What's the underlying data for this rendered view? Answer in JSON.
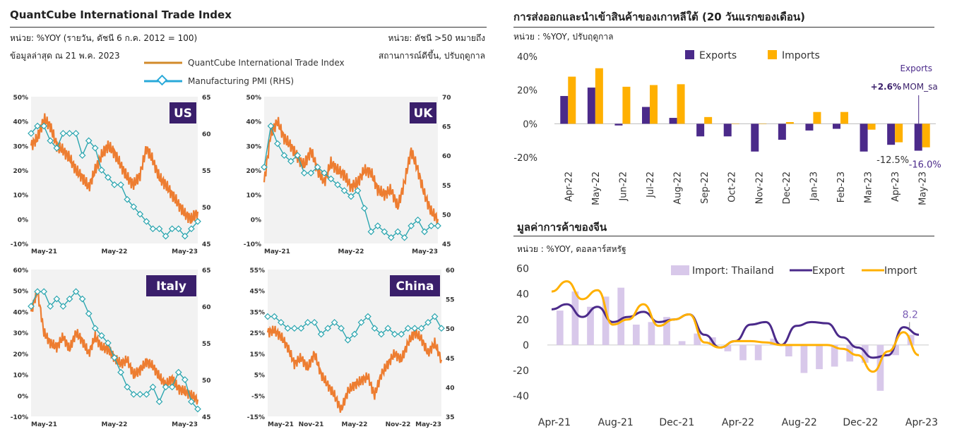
{
  "left": {
    "title": "QuantCube International Trade Index",
    "unit_note": "หน่วย: %YOY (รายวัน, ดัชนี 6 ก.ค. 2012 = 100)",
    "data_date": "ข้อมูลล่าสุด ณ 21 พ.ค. 2023",
    "right_note_1": "หน่วย: ดัชนี >50 หมายถึง",
    "right_note_2": "สถานการณ์ดีขึ้น, ปรับฤดูกาล",
    "legend": [
      "QuantCube International Trade Index",
      "Manufacturing PMI (RHS)"
    ],
    "colors": {
      "index": "#ED7D31",
      "pmi": "#2CA6B0",
      "label_bg": "#3A1F6B"
    }
  },
  "chart_data": [
    {
      "type": "line",
      "name": "US",
      "x_ticks": [
        "May-21",
        "May-22",
        "May-23"
      ],
      "y_left_ticks": [
        "50%",
        "40%",
        "30%",
        "20%",
        "10%",
        "0%",
        "-10%"
      ],
      "ylim_left": [
        -10,
        50
      ],
      "y_right_ticks": [
        "65",
        "60",
        "55",
        "50",
        "45"
      ],
      "ylim_right": [
        45,
        65
      ],
      "index": [
        30,
        33,
        41,
        38,
        30,
        28,
        25,
        20,
        17,
        13,
        20,
        26,
        30,
        27,
        22,
        17,
        14,
        18,
        29,
        24,
        17,
        14,
        10,
        6,
        2,
        0,
        3
      ],
      "pmi": [
        60,
        61,
        61,
        59,
        58,
        60,
        60,
        60,
        57,
        59,
        58,
        55,
        54,
        53,
        53,
        51,
        50,
        49,
        48,
        47,
        47,
        46,
        47,
        47,
        46,
        47,
        48
      ]
    },
    {
      "type": "line",
      "name": "UK",
      "x_ticks": [
        "May-21",
        "May-22",
        "May-23"
      ],
      "y_left_ticks": [
        "50%",
        "40%",
        "30%",
        "20%",
        "10%",
        "0%",
        "-10%"
      ],
      "ylim_left": [
        -10,
        50
      ],
      "y_right_ticks": [
        "70",
        "65",
        "60",
        "55",
        "50",
        "45"
      ],
      "ylim_right": [
        45,
        70
      ],
      "index": [
        15,
        35,
        40,
        33,
        30,
        25,
        22,
        28,
        20,
        15,
        23,
        20,
        18,
        13,
        15,
        20,
        19,
        12,
        10,
        12,
        5,
        15,
        28,
        20,
        10,
        3,
        0
      ],
      "pmi": [
        58,
        65,
        62,
        60,
        59,
        60,
        57,
        57,
        58,
        57,
        56,
        55,
        54,
        53,
        54,
        51,
        47,
        48,
        47,
        46,
        47,
        46,
        48,
        49,
        47,
        48,
        48
      ]
    },
    {
      "type": "line",
      "name": "Italy",
      "x_ticks": [
        "May-21",
        "May-22",
        "May-23"
      ],
      "y_left_ticks": [
        "60%",
        "50%",
        "40%",
        "30%",
        "20%",
        "10%",
        "0%",
        "-10%"
      ],
      "ylim_left": [
        -10,
        60
      ],
      "y_right_ticks": [
        "65",
        "60",
        "55",
        "50",
        "45"
      ],
      "ylim_right": [
        45,
        65
      ],
      "index": [
        40,
        50,
        30,
        25,
        23,
        28,
        22,
        30,
        26,
        20,
        28,
        23,
        22,
        18,
        15,
        17,
        10,
        12,
        16,
        14,
        9,
        5,
        8,
        3,
        2,
        0,
        -2
      ],
      "pmi": [
        60,
        62,
        62,
        60,
        61,
        60,
        61,
        62,
        61,
        59,
        57,
        56,
        55,
        53,
        51,
        49,
        48,
        48,
        48,
        49,
        47,
        49,
        49,
        51,
        50,
        47,
        46
      ]
    },
    {
      "type": "line",
      "name": "China",
      "x_ticks": [
        "May-21",
        "Nov-21",
        "May-22",
        "Nov-22",
        "May-23"
      ],
      "y_left_ticks": [
        "55%",
        "45%",
        "35%",
        "25%",
        "15%",
        "5%",
        "-5%",
        "-15%"
      ],
      "ylim_left": [
        -15,
        55
      ],
      "y_right_ticks": [
        "60",
        "55",
        "50",
        "45",
        "40",
        "35"
      ],
      "ylim_right": [
        35,
        60
      ],
      "index": [
        25,
        26,
        23,
        18,
        10,
        13,
        8,
        15,
        5,
        0,
        -5,
        -12,
        -3,
        0,
        2,
        4,
        -5,
        5,
        10,
        15,
        12,
        20,
        25,
        22,
        15,
        20,
        12
      ],
      "pmi": [
        52,
        52,
        51,
        50,
        50,
        50,
        51,
        51,
        49,
        50,
        51,
        50,
        48,
        49,
        51,
        52,
        50,
        49,
        50,
        49,
        49,
        50,
        50,
        50,
        51,
        52,
        50
      ]
    },
    {
      "type": "bar",
      "title": "การส่งออกและนำเข้าสินค้าของเกาหลีใต้ (20 วันแรกของเดือน)",
      "unit_note": "หน่วย : %YOY, ปรับฤดูกาล",
      "categories": [
        "Apr-22",
        "May-22",
        "Jun-22",
        "Jul-22",
        "Aug-22",
        "Sep-22",
        "Oct-22",
        "Nov-22",
        "Dec-22",
        "Jan-23",
        "Feb-23",
        "Mar-23",
        "Apr-23",
        "May-23"
      ],
      "series": [
        {
          "name": "Exports",
          "values": [
            16.5,
            21.5,
            -1.0,
            10.0,
            3.5,
            -7.5,
            -7.5,
            -16.5,
            -9.5,
            -4.0,
            -3.0,
            -16.5,
            -12.5,
            -16.0
          ]
        },
        {
          "name": "Imports",
          "values": [
            28.0,
            33.0,
            22.0,
            23.0,
            23.5,
            4.0,
            0.0,
            0.0,
            1.0,
            7.0,
            7.0,
            -3.5,
            -11.0,
            -14.0
          ]
        }
      ],
      "y_ticks": [
        "40%",
        "20%",
        "0%",
        "-20%"
      ],
      "ylim": [
        -25,
        40
      ],
      "annotations": {
        "exports_label": "Exports",
        "mom_prefix": "+2.6%",
        "mom_suffix": "MOM_sa",
        "apr_label": "-12.5%",
        "may_label": "-16.0%"
      },
      "colors": {
        "Exports": "#4B2A8A",
        "Imports": "#FFB000"
      }
    },
    {
      "type": "bar",
      "title": "มูลค่าการค้าของจีน",
      "unit_note": "หน่วย : %YOY, ดอลลาร์สหรัฐ",
      "x_ticks": [
        "Apr-21",
        "Aug-21",
        "Dec-21",
        "Apr-22",
        "Aug-22",
        "Dec-22",
        "Apr-23"
      ],
      "y_ticks": [
        "60",
        "40",
        "20",
        "0",
        "-20",
        "-40"
      ],
      "ylim": [
        -45,
        62
      ],
      "series": [
        {
          "name": "Import: Thailand",
          "values": [
            27,
            42,
            30,
            38,
            45,
            16,
            18,
            22,
            3,
            9,
            6,
            -5,
            -12,
            -12,
            5,
            -9,
            -22,
            -19,
            -17,
            -13,
            -14,
            -36,
            -8,
            8
          ]
        },
        {
          "name": "Export",
          "values": [
            28,
            32,
            22,
            30,
            18,
            22,
            26,
            18,
            20,
            24,
            8,
            -2,
            3,
            16,
            18,
            0,
            15,
            18,
            17,
            6,
            -2,
            -10,
            -8,
            14,
            8
          ]
        },
        {
          "name": "Import",
          "values": [
            42,
            50,
            36,
            43,
            16,
            20,
            32,
            15,
            20,
            24,
            2,
            -2,
            3,
            3,
            2,
            0,
            0,
            0,
            0,
            -3,
            -8,
            -21,
            -5,
            10,
            -8
          ]
        }
      ],
      "annotations": {
        "last_label": "8.2"
      },
      "colors": {
        "Import: Thailand": "#D8C8EA",
        "Export": "#4B2A8A",
        "Import": "#FFB000"
      }
    }
  ]
}
